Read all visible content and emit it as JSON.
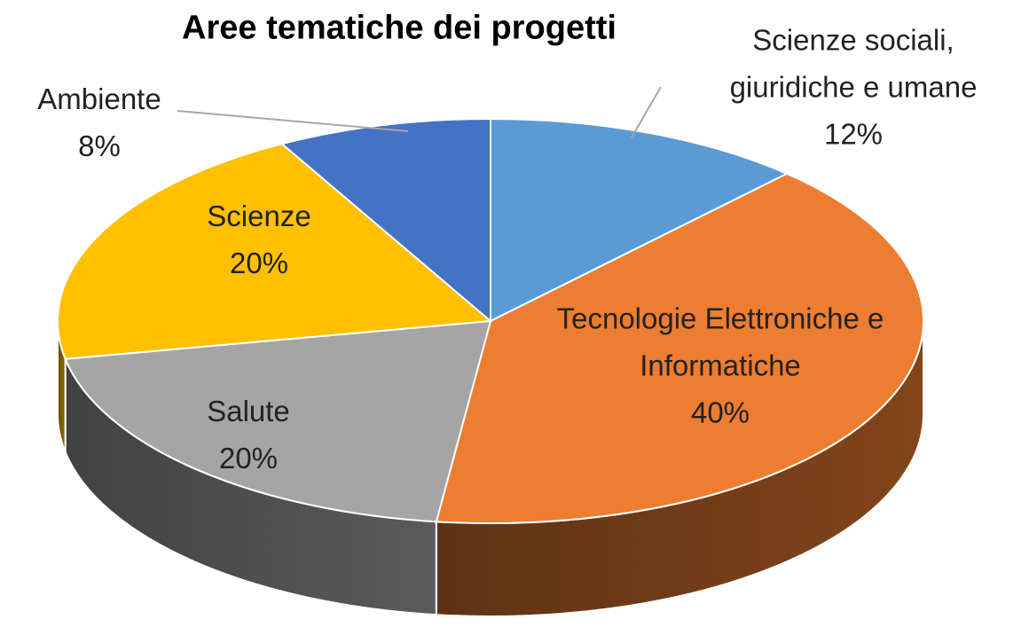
{
  "chart_data": {
    "type": "pie",
    "title": "Aree tematiche dei progetti",
    "categories": [
      "Scienze sociali, giuridiche e umane",
      "Tecnologie Elettroniche e Informatiche",
      "Salute",
      "Scienze",
      "Ambiente"
    ],
    "values": [
      12,
      40,
      20,
      20,
      8
    ],
    "value_labels": [
      "12%",
      "40%",
      "20%",
      "20%",
      "8%"
    ],
    "colors": [
      "#5b9bd5",
      "#ed7d31",
      "#a5a5a5",
      "#ffc000",
      "#4472c4"
    ]
  }
}
